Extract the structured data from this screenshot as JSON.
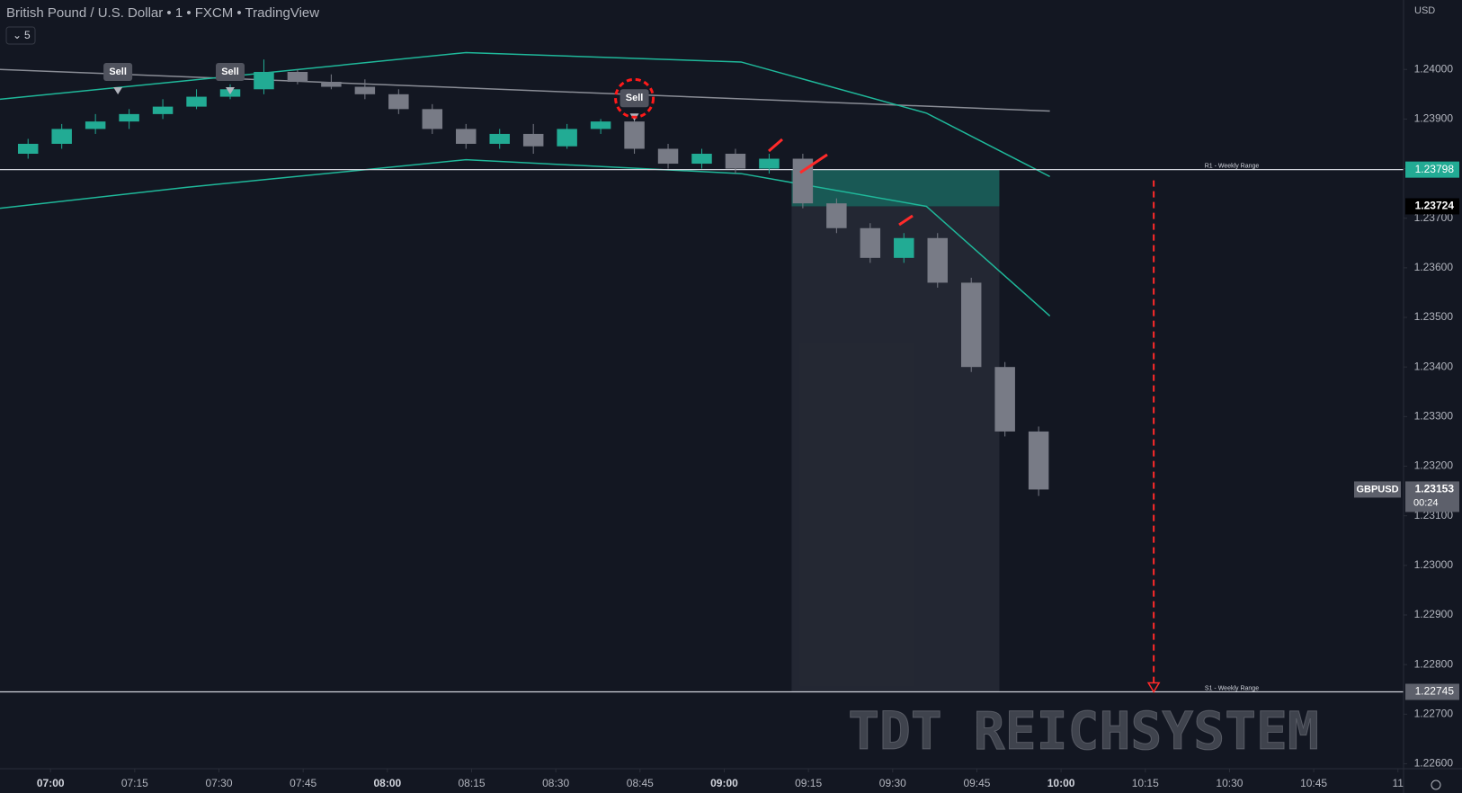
{
  "header": {
    "title": "British Pound / U.S. Dollar • 1 • FXCM • TradingView",
    "interval_badge": "5",
    "currency": "USD"
  },
  "chart_data": {
    "type": "candlestick",
    "x": [
      -4,
      2,
      8,
      14,
      20,
      26,
      32,
      38,
      44,
      50,
      56,
      62,
      68,
      74,
      80,
      86,
      92,
      98,
      104,
      110,
      116,
      122,
      128,
      134,
      140,
      146,
      152,
      158,
      164,
      170,
      176
    ],
    "open": [
      1.2383,
      1.2385,
      1.2388,
      1.23895,
      1.2391,
      1.23925,
      1.23945,
      1.2396,
      1.23995,
      1.23975,
      1.23965,
      1.2395,
      1.2392,
      1.2388,
      1.2385,
      1.2387,
      1.23845,
      1.2388,
      1.23895,
      1.2384,
      1.2381,
      1.2383,
      1.238,
      1.2382,
      1.2373,
      1.2368,
      1.2362,
      1.2366,
      1.2357,
      1.234,
      1.2327
    ],
    "high": [
      1.2386,
      1.2389,
      1.2391,
      1.2392,
      1.2394,
      1.2396,
      1.2397,
      1.2402,
      1.24,
      1.2399,
      1.2398,
      1.2396,
      1.2393,
      1.2389,
      1.2388,
      1.2389,
      1.2389,
      1.239,
      1.2391,
      1.2385,
      1.2384,
      1.2384,
      1.2383,
      1.2383,
      1.2374,
      1.2369,
      1.2367,
      1.2367,
      1.2358,
      1.2341,
      1.2328
    ],
    "low": [
      1.2382,
      1.2384,
      1.2387,
      1.2388,
      1.239,
      1.2392,
      1.2394,
      1.2395,
      1.2397,
      1.2396,
      1.2394,
      1.2391,
      1.2387,
      1.2384,
      1.2384,
      1.2383,
      1.2384,
      1.2387,
      1.2383,
      1.238,
      1.238,
      1.2379,
      1.2379,
      1.2372,
      1.2367,
      1.2361,
      1.2361,
      1.2356,
      1.2339,
      1.2326,
      1.2314
    ],
    "close": [
      1.2385,
      1.2388,
      1.23895,
      1.2391,
      1.23925,
      1.23945,
      1.2396,
      1.23995,
      1.23975,
      1.23965,
      1.2395,
      1.2392,
      1.2388,
      1.2385,
      1.2387,
      1.23845,
      1.2388,
      1.23895,
      1.2384,
      1.2381,
      1.2383,
      1.238,
      1.2382,
      1.2373,
      1.2368,
      1.2362,
      1.2366,
      1.2357,
      1.234,
      1.2327,
      1.23153
    ],
    "up_color": "#22ab94",
    "down_color": "#787b86",
    "xlim": [
      -9,
      241
    ],
    "xticks": [
      {
        "value": 0,
        "label": "07:00"
      },
      {
        "value": 15,
        "label": "07:15"
      },
      {
        "value": 30,
        "label": "07:30"
      },
      {
        "value": 45,
        "label": "07:45"
      },
      {
        "value": 60,
        "label": "08:00"
      },
      {
        "value": 75,
        "label": "08:15"
      },
      {
        "value": 90,
        "label": "08:30"
      },
      {
        "value": 105,
        "label": "08:45"
      },
      {
        "value": 120,
        "label": "09:00"
      },
      {
        "value": 135,
        "label": "09:15"
      },
      {
        "value": 150,
        "label": "09:30"
      },
      {
        "value": 165,
        "label": "09:45"
      },
      {
        "value": 180,
        "label": "10:00"
      },
      {
        "value": 195,
        "label": "10:15"
      },
      {
        "value": 210,
        "label": "10:30"
      },
      {
        "value": 225,
        "label": "10:45"
      },
      {
        "value": 240,
        "label": "11"
      }
    ],
    "ylim": [
      1.2259,
      1.2414
    ],
    "yticks": [
      {
        "value": 1.226,
        "label": "1.22600"
      },
      {
        "value": 1.227,
        "label": "1.22700"
      },
      {
        "value": 1.228,
        "label": "1.22800"
      },
      {
        "value": 1.229,
        "label": "1.22900"
      },
      {
        "value": 1.23,
        "label": "1.23000"
      },
      {
        "value": 1.231,
        "label": "1.23100"
      },
      {
        "value": 1.232,
        "label": "1.23200"
      },
      {
        "value": 1.233,
        "label": "1.23300"
      },
      {
        "value": 1.234,
        "label": "1.23400"
      },
      {
        "value": 1.235,
        "label": "1.23500"
      },
      {
        "value": 1.236,
        "label": "1.23600"
      },
      {
        "value": 1.237,
        "label": "1.23700"
      },
      {
        "value": 1.238,
        "label": "1.23800"
      },
      {
        "value": 1.239,
        "label": "1.23900"
      },
      {
        "value": 1.24,
        "label": "1.24000"
      }
    ],
    "symbol": "GBPUSD",
    "last_price": 1.23153,
    "countdown": "00:24",
    "levels": [
      {
        "name": "R1 - Weekly Range",
        "value": 1.23798,
        "color": "#d1d4dc",
        "badge_color": "#22ab94"
      },
      {
        "name": "S1 - Weekly Range",
        "value": 1.22745,
        "color": "#d1d4dc",
        "badge_color": "#5d606b"
      }
    ],
    "overlays": [
      {
        "color": "#8a8d96",
        "x": [
          -9,
          178
        ],
        "values": [
          1.24,
          1.23916
        ]
      },
      {
        "color": "#1fb89a",
        "x": [
          -9,
          24,
          74,
          123,
          156,
          178
        ],
        "values": [
          1.2394,
          1.23977,
          1.24034,
          1.24015,
          1.23912,
          1.23784
        ]
      },
      {
        "color": "#1fb89a",
        "x": [
          -9,
          24,
          74,
          123,
          156,
          178
        ],
        "values": [
          1.2372,
          1.23762,
          1.23818,
          1.2379,
          1.23724,
          1.23503
        ]
      }
    ],
    "signals": [
      {
        "label": "Sell",
        "x": 12,
        "y": 1.23955
      },
      {
        "label": "Sell",
        "x": 32,
        "y": 1.23955
      },
      {
        "label": "Sell",
        "x": 104,
        "y": 1.23902
      }
    ],
    "position": {
      "x_start": 132,
      "x_end": 169,
      "entry": 1.23724,
      "stop": 1.23798,
      "target": 1.22745
    },
    "projection": {
      "x": 196.5,
      "from": 1.23798,
      "to": 1.22745,
      "color": "#ff2a2a"
    },
    "watermark": "TDT REICHSYSTEM"
  }
}
